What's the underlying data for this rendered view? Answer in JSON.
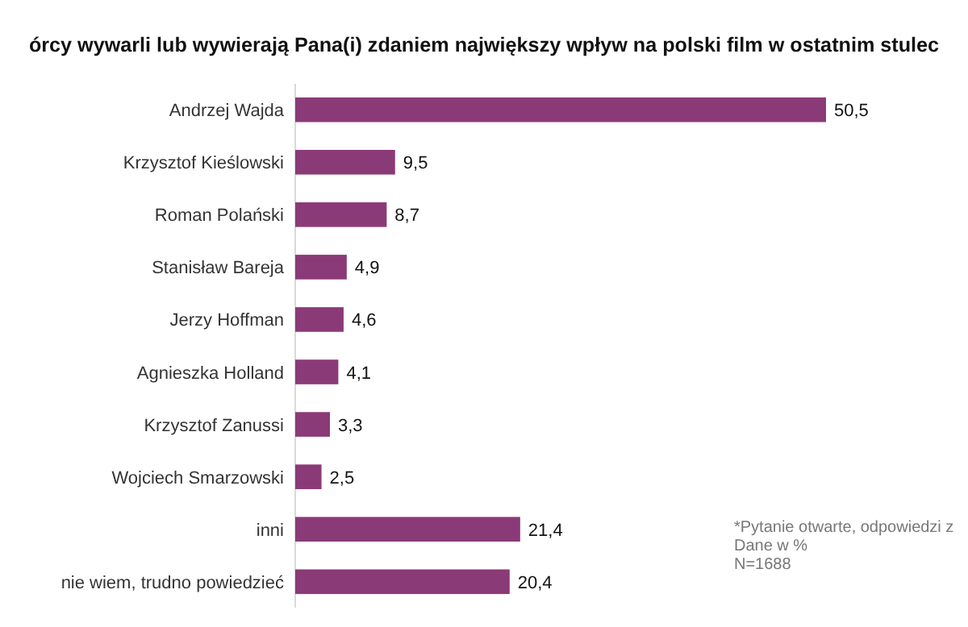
{
  "chart_data": {
    "type": "bar",
    "orientation": "horizontal",
    "title": "órcy wywarli lub wywierają Pana(i) zdaniem największy wpływ na polski film w ostatnim stulec",
    "categories": [
      "Andrzej Wajda",
      "Krzysztof Kieślowski",
      "Roman Polański",
      "Stanisław Bareja",
      "Jerzy Hoffman",
      "Agnieszka Holland",
      "Krzysztof Zanussi",
      "Wojciech Smarzowski",
      "inni",
      "nie wiem, trudno powiedzieć"
    ],
    "values": [
      50.5,
      9.5,
      8.7,
      4.9,
      4.6,
      4.1,
      3.3,
      2.5,
      21.4,
      20.4
    ],
    "value_labels": [
      "50,5",
      "9,5",
      "8,7",
      "4,9",
      "4,6",
      "4,1",
      "3,3",
      "2,5",
      "21,4",
      "20,4"
    ],
    "color": "#8b3a78",
    "annotations": [
      "*Pytanie otwarte, odpowiedzi z",
      "Dane w %",
      "N=1688"
    ]
  }
}
